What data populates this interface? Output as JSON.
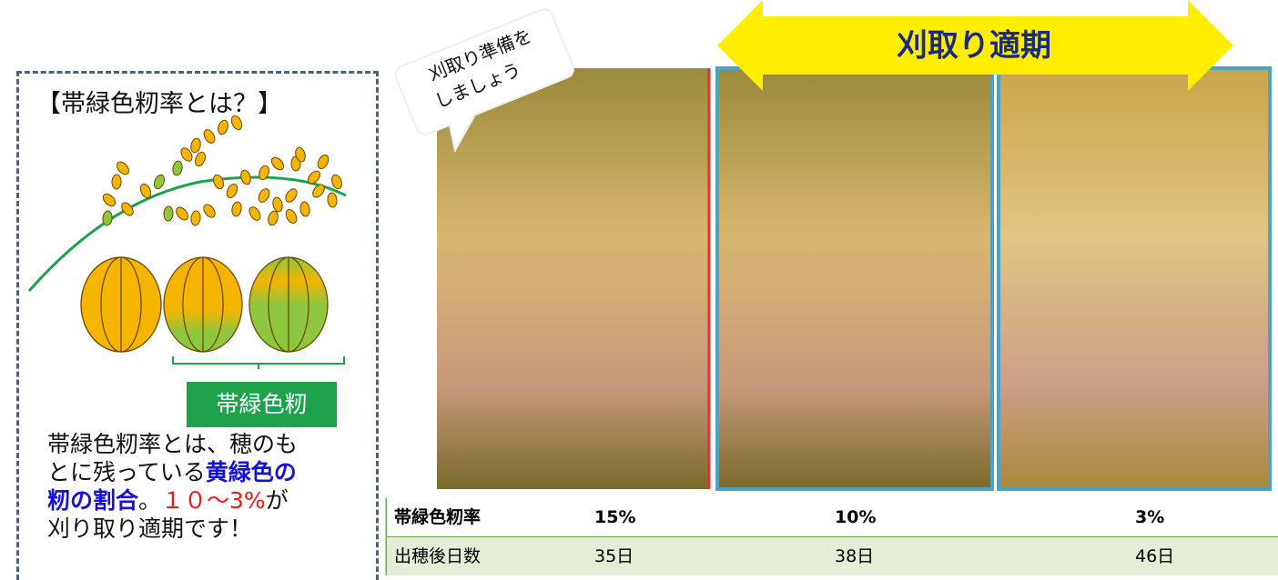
{
  "panel": {
    "title": "【帯緑色籾率とは？】",
    "label": "帯緑色籾",
    "description": [
      [
        "帯緑色籾率とは、穂のも"
      ],
      [
        "とに残っている",
        "黄緑色の"
      ],
      [
        "籾の割合",
        "。",
        "１０〜3%",
        "が"
      ],
      [
        "刈り取り適期です！"
      ]
    ]
  },
  "callout": [
    "刈取り準備を",
    "しましょう"
  ],
  "arrow": "刈取り適期",
  "table": {
    "rows": [
      [
        "帯緑色籾率",
        "15%",
        "10%",
        "3%"
      ],
      [
        "出穂後日数",
        "35日",
        "38日",
        "46日"
      ]
    ]
  }
}
